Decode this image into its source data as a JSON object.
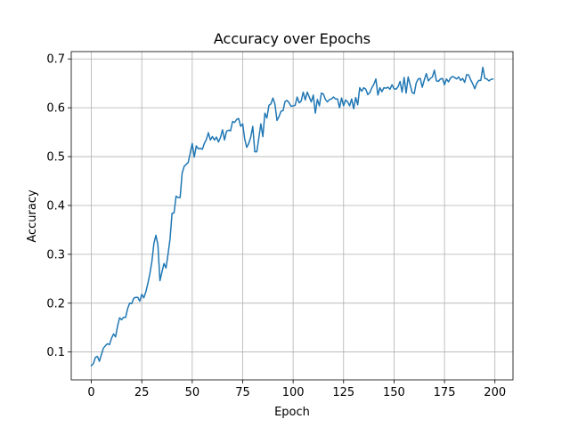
{
  "chart_data": {
    "type": "line",
    "title": "Accuracy over Epochs",
    "xlabel": "Epoch",
    "ylabel": "Accuracy",
    "xlim": [
      -9.95,
      208.95
    ],
    "ylim": [
      0.043,
      0.715
    ],
    "xticks": [
      0,
      25,
      50,
      75,
      100,
      125,
      150,
      175,
      200
    ],
    "yticks": [
      0.1,
      0.2,
      0.3,
      0.4,
      0.5,
      0.6,
      0.7
    ],
    "ytick_labels": [
      "0.1",
      "0.2",
      "0.3",
      "0.4",
      "0.5",
      "0.6",
      "0.7"
    ],
    "grid": true,
    "legend": "none",
    "line_color": "#1f77b4",
    "series": [
      {
        "x": [
          0,
          1,
          2,
          3,
          4,
          5,
          6,
          7,
          8,
          9,
          10,
          11,
          12,
          13,
          14,
          15,
          16,
          17,
          18,
          19,
          20,
          21,
          22,
          23,
          24,
          25,
          26,
          27,
          28,
          29,
          30,
          31,
          32,
          33,
          34,
          35,
          36,
          37,
          38,
          39,
          40,
          41,
          42,
          43,
          44,
          45,
          46,
          47,
          48,
          49,
          50,
          51,
          52,
          53,
          54,
          55,
          56,
          57,
          58,
          59,
          60,
          61,
          62,
          63,
          64,
          65,
          66,
          67,
          68,
          69,
          70,
          71,
          72,
          73,
          74,
          75,
          76,
          77,
          78,
          79,
          80,
          81,
          82,
          83,
          84,
          85,
          86,
          87,
          88,
          89,
          90,
          91,
          92,
          93,
          94,
          95,
          96,
          97,
          98,
          99,
          100,
          101,
          102,
          103,
          104,
          105,
          106,
          107,
          108,
          109,
          110,
          111,
          112,
          113,
          114,
          115,
          116,
          117,
          118,
          119,
          120,
          121,
          122,
          123,
          124,
          125,
          126,
          127,
          128,
          129,
          130,
          131,
          132,
          133,
          134,
          135,
          136,
          137,
          138,
          139,
          140,
          141,
          142,
          143,
          144,
          145,
          146,
          147,
          148,
          149,
          150,
          151,
          152,
          153,
          154,
          155,
          156,
          157,
          158,
          159,
          160,
          161,
          162,
          163,
          164,
          165,
          166,
          167,
          168,
          169,
          170,
          171,
          172,
          173,
          174,
          175,
          176,
          177,
          178,
          179,
          180,
          181,
          182,
          183,
          184,
          185,
          186,
          187,
          188,
          189,
          190,
          191,
          192,
          193,
          194,
          195,
          196,
          197,
          198,
          199
        ],
        "values": [
          0.072,
          0.076,
          0.089,
          0.091,
          0.081,
          0.095,
          0.108,
          0.113,
          0.117,
          0.115,
          0.128,
          0.137,
          0.131,
          0.153,
          0.17,
          0.166,
          0.171,
          0.171,
          0.189,
          0.2,
          0.199,
          0.21,
          0.212,
          0.212,
          0.204,
          0.218,
          0.211,
          0.223,
          0.24,
          0.26,
          0.285,
          0.322,
          0.339,
          0.319,
          0.246,
          0.264,
          0.281,
          0.272,
          0.3,
          0.331,
          0.384,
          0.385,
          0.419,
          0.416,
          0.416,
          0.466,
          0.48,
          0.484,
          0.488,
          0.507,
          0.527,
          0.499,
          0.522,
          0.516,
          0.517,
          0.515,
          0.527,
          0.535,
          0.549,
          0.534,
          0.541,
          0.534,
          0.54,
          0.53,
          0.539,
          0.555,
          0.534,
          0.552,
          0.554,
          0.553,
          0.572,
          0.57,
          0.576,
          0.578,
          0.562,
          0.567,
          0.536,
          0.519,
          0.527,
          0.54,
          0.562,
          0.51,
          0.51,
          0.538,
          0.567,
          0.541,
          0.589,
          0.579,
          0.605,
          0.608,
          0.62,
          0.607,
          0.574,
          0.582,
          0.593,
          0.594,
          0.613,
          0.615,
          0.61,
          0.603,
          0.604,
          0.605,
          0.622,
          0.61,
          0.614,
          0.632,
          0.616,
          0.632,
          0.622,
          0.612,
          0.626,
          0.589,
          0.617,
          0.604,
          0.63,
          0.628,
          0.617,
          0.612,
          0.617,
          0.618,
          0.622,
          0.618,
          0.618,
          0.6,
          0.62,
          0.604,
          0.616,
          0.612,
          0.604,
          0.618,
          0.598,
          0.621,
          0.606,
          0.641,
          0.634,
          0.641,
          0.638,
          0.627,
          0.631,
          0.641,
          0.648,
          0.659,
          0.626,
          0.641,
          0.633,
          0.641,
          0.64,
          0.642,
          0.638,
          0.647,
          0.639,
          0.638,
          0.643,
          0.654,
          0.632,
          0.662,
          0.63,
          0.663,
          0.647,
          0.631,
          0.629,
          0.651,
          0.659,
          0.66,
          0.642,
          0.657,
          0.67,
          0.655,
          0.66,
          0.663,
          0.677,
          0.655,
          0.654,
          0.659,
          0.66,
          0.647,
          0.659,
          0.653,
          0.661,
          0.664,
          0.662,
          0.659,
          0.663,
          0.656,
          0.66,
          0.652,
          0.668,
          0.667,
          0.657,
          0.649,
          0.639,
          0.65,
          0.656,
          0.656,
          0.683,
          0.66,
          0.659,
          0.655,
          0.658,
          0.659
        ]
      }
    ]
  }
}
